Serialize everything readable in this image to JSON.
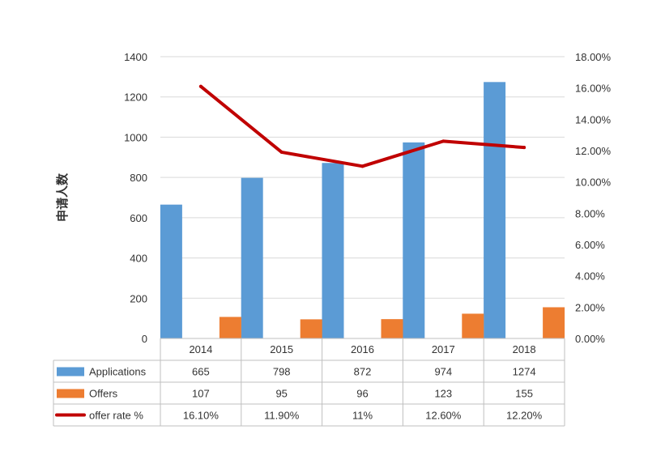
{
  "chart_data": {
    "type": "bar",
    "ylabel": "申请人数",
    "categories": [
      "2014",
      "2015",
      "2016",
      "2017",
      "2018"
    ],
    "ylim": [
      0,
      1400
    ],
    "yticks": [
      "0",
      "200",
      "400",
      "600",
      "800",
      "1000",
      "1200",
      "1400"
    ],
    "y2lim": [
      0,
      18
    ],
    "y2ticks": [
      "0.00%",
      "2.00%",
      "4.00%",
      "6.00%",
      "8.00%",
      "10.00%",
      "12.00%",
      "14.00%",
      "16.00%",
      "18.00%"
    ],
    "grid": true,
    "legend": "data table below chart",
    "series": [
      {
        "name": "Applications",
        "type": "bar",
        "axis": "left",
        "color": "#5b9bd5",
        "values": [
          665,
          798,
          872,
          974,
          1274
        ],
        "labels": [
          "665",
          "798",
          "872",
          "974",
          "1274"
        ]
      },
      {
        "name": "Offers",
        "type": "bar",
        "axis": "left",
        "color": "#ed7d31",
        "values": [
          107,
          95,
          96,
          123,
          155
        ],
        "labels": [
          "107",
          "95",
          "96",
          "123",
          "155"
        ]
      },
      {
        "name": "offer rate %",
        "type": "line",
        "axis": "right",
        "color": "#c00000",
        "values": [
          16.1,
          11.9,
          11,
          12.6,
          12.2
        ],
        "labels": [
          "16.10%",
          "11.90%",
          "11%",
          "12.60%",
          "12.20%"
        ]
      }
    ]
  }
}
